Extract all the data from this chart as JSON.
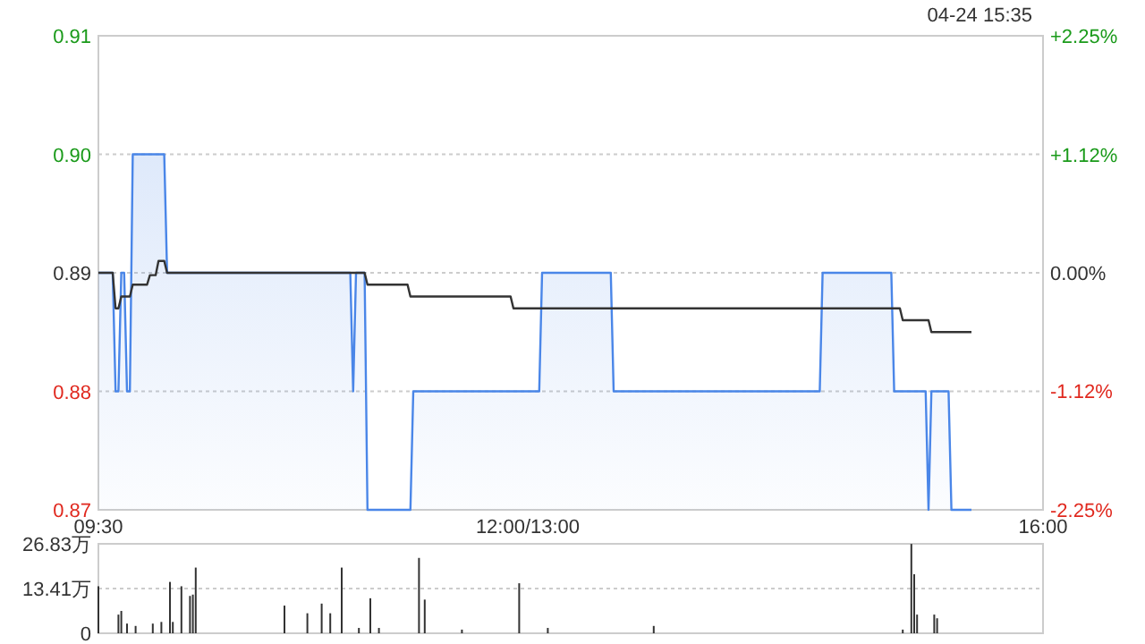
{
  "chart_data": [
    {
      "type": "area",
      "annotations": [
        "04-24 15:35"
      ],
      "categories": [
        "09:30",
        null,
        null,
        null,
        null,
        null,
        null,
        null,
        null,
        null,
        null,
        null,
        null,
        null,
        null,
        null,
        null,
        null,
        null,
        null,
        null,
        null,
        null,
        null,
        null,
        null,
        null,
        null,
        null,
        null,
        null,
        null,
        null,
        null,
        null,
        null,
        null,
        null,
        null,
        null,
        null,
        null,
        null,
        null,
        null,
        null,
        null,
        null,
        null,
        null,
        null,
        null,
        null,
        null,
        null,
        null,
        null,
        null,
        null,
        null,
        null,
        null,
        null,
        null,
        null,
        null,
        null,
        null,
        null,
        null,
        null,
        null,
        null,
        null,
        null,
        null,
        null,
        null,
        null,
        null,
        null,
        null,
        null,
        null,
        null,
        null,
        null,
        null,
        null,
        null,
        null,
        null,
        null,
        null,
        null,
        null,
        null,
        null,
        null,
        null,
        null,
        null,
        null,
        null,
        null,
        null,
        null,
        null,
        null,
        null,
        null,
        null,
        null,
        null,
        null,
        null,
        null,
        null,
        null,
        null,
        null,
        null,
        null,
        null,
        null,
        null,
        null,
        null,
        null,
        null,
        null,
        null,
        null,
        null,
        null,
        null,
        null,
        null,
        null,
        null,
        null,
        null,
        null,
        null,
        null,
        null,
        null,
        null,
        null,
        null,
        "12:00/13:00",
        null,
        null,
        null,
        null,
        null,
        null,
        null,
        null,
        null,
        null,
        null,
        null,
        null,
        null,
        null,
        null,
        null,
        null,
        null,
        null,
        null,
        null,
        null,
        null,
        null,
        null,
        null,
        null,
        null,
        null,
        null,
        null,
        null,
        null,
        null,
        null,
        null,
        null,
        null,
        null,
        null,
        null,
        null,
        null,
        null,
        null,
        null,
        null,
        null,
        null,
        null,
        null,
        null,
        null,
        null,
        null,
        null,
        null,
        null,
        null,
        null,
        null,
        null,
        null,
        null,
        null,
        null,
        null,
        null,
        null,
        null,
        null,
        null,
        null,
        null,
        null,
        null,
        null,
        null,
        null,
        null,
        null,
        null,
        null,
        null,
        null,
        null,
        null,
        null,
        null,
        null,
        null,
        null,
        null,
        null,
        null,
        null,
        null,
        null,
        null,
        null,
        null,
        null,
        null,
        null,
        null,
        null,
        null,
        null,
        null,
        null,
        null,
        null,
        null,
        null,
        null,
        null,
        null,
        null,
        null,
        null,
        null,
        null,
        null,
        null,
        null,
        null,
        null,
        null,
        null,
        null,
        null,
        null,
        null,
        null,
        null,
        null,
        null,
        null,
        null,
        null,
        null,
        null,
        null,
        null,
        null,
        null,
        null,
        null,
        null,
        null,
        null,
        null,
        null,
        null,
        null,
        null,
        null,
        null,
        null,
        null,
        null,
        null,
        null,
        null,
        null,
        null,
        null,
        null,
        null,
        null,
        null,
        null,
        null,
        null,
        null,
        null,
        null,
        null,
        "16:00"
      ],
      "ylim": [
        0.87,
        0.91
      ],
      "yticks": [
        {
          "value": 0.87,
          "label": "0.87"
        },
        {
          "value": 0.88,
          "label": "0.88"
        },
        {
          "value": 0.89,
          "label": "0.89"
        },
        {
          "value": 0.9,
          "label": "0.90"
        },
        {
          "value": 0.91,
          "label": "0.91"
        }
      ],
      "y2lim": [
        -2.25,
        2.25
      ],
      "y2ticks": [
        {
          "value": -2.25,
          "label": "-2.25%"
        },
        {
          "value": -1.12,
          "label": "-1.12%"
        },
        {
          "value": 0,
          "label": "0.00%"
        },
        {
          "value": 1.12,
          "label": "+1.12%"
        },
        {
          "value": 2.25,
          "label": "+2.25%"
        }
      ],
      "grid": "y",
      "series": [
        {
          "color": "#4a86e8",
          "values": [
            0.89,
            0.89,
            0.89,
            0.89,
            0.89,
            0.89,
            0.88,
            0.88,
            0.89,
            0.89,
            0.88,
            0.88,
            0.9,
            0.9,
            0.9,
            0.9,
            0.9,
            0.9,
            0.9,
            0.9,
            0.9,
            0.9,
            0.9,
            0.9,
            0.89,
            0.89,
            0.89,
            0.89,
            0.89,
            0.89,
            0.89,
            0.89,
            0.89,
            0.89,
            0.89,
            0.89,
            0.89,
            0.89,
            0.89,
            0.89,
            0.89,
            0.89,
            0.89,
            0.89,
            0.89,
            0.89,
            0.89,
            0.89,
            0.89,
            0.89,
            0.89,
            0.89,
            0.89,
            0.89,
            0.89,
            0.89,
            0.89,
            0.89,
            0.89,
            0.89,
            0.89,
            0.89,
            0.89,
            0.89,
            0.89,
            0.89,
            0.89,
            0.89,
            0.89,
            0.89,
            0.89,
            0.89,
            0.89,
            0.89,
            0.89,
            0.89,
            0.89,
            0.89,
            0.89,
            0.89,
            0.89,
            0.89,
            0.89,
            0.89,
            0.89,
            0.89,
            0.89,
            0.89,
            0.89,
            0.88,
            0.89,
            0.89,
            0.89,
            0.89,
            0.87,
            0.87,
            0.87,
            0.87,
            0.87,
            0.87,
            0.87,
            0.87,
            0.87,
            0.87,
            0.87,
            0.87,
            0.87,
            0.87,
            0.87,
            0.87,
            0.88,
            0.88,
            0.88,
            0.88,
            0.88,
            0.88,
            0.88,
            0.88,
            0.88,
            0.88,
            0.88,
            0.88,
            0.88,
            0.88,
            0.88,
            0.88,
            0.88,
            0.88,
            0.88,
            0.88,
            0.88,
            0.88,
            0.88,
            0.88,
            0.88,
            0.88,
            0.88,
            0.88,
            0.88,
            0.88,
            0.88,
            0.88,
            0.88,
            0.88,
            0.88,
            0.88,
            0.88,
            0.88,
            0.88,
            0.88,
            0.88,
            0.88,
            0.88,
            0.88,
            0.88,
            0.89,
            0.89,
            0.89,
            0.89,
            0.89,
            0.89,
            0.89,
            0.89,
            0.89,
            0.89,
            0.89,
            0.89,
            0.89,
            0.89,
            0.89,
            0.89,
            0.89,
            0.89,
            0.89,
            0.89,
            0.89,
            0.89,
            0.89,
            0.89,
            0.89,
            0.88,
            0.88,
            0.88,
            0.88,
            0.88,
            0.88,
            0.88,
            0.88,
            0.88,
            0.88,
            0.88,
            0.88,
            0.88,
            0.88,
            0.88,
            0.88,
            0.88,
            0.88,
            0.88,
            0.88,
            0.88,
            0.88,
            0.88,
            0.88,
            0.88,
            0.88,
            0.88,
            0.88,
            0.88,
            0.88,
            0.88,
            0.88,
            0.88,
            0.88,
            0.88,
            0.88,
            0.88,
            0.88,
            0.88,
            0.88,
            0.88,
            0.88,
            0.88,
            0.88,
            0.88,
            0.88,
            0.88,
            0.88,
            0.88,
            0.88,
            0.88,
            0.88,
            0.88,
            0.88,
            0.88,
            0.88,
            0.88,
            0.88,
            0.88,
            0.88,
            0.88,
            0.88,
            0.88,
            0.88,
            0.88,
            0.88,
            0.88,
            0.88,
            0.88,
            0.88,
            0.88,
            0.88,
            0.88,
            0.89,
            0.89,
            0.89,
            0.89,
            0.89,
            0.89,
            0.89,
            0.89,
            0.89,
            0.89,
            0.89,
            0.89,
            0.89,
            0.89,
            0.89,
            0.89,
            0.89,
            0.89,
            0.89,
            0.89,
            0.89,
            0.89,
            0.89,
            0.89,
            0.89,
            0.88,
            0.88,
            0.88,
            0.88,
            0.88,
            0.88,
            0.88,
            0.88,
            0.88,
            0.88,
            0.88,
            0.88,
            0.87,
            0.88,
            0.88,
            0.88,
            0.88,
            0.88,
            0.88,
            0.88,
            0.87,
            0.87,
            0.87,
            0.87,
            0.87,
            0.87,
            0.87,
            0.87,
            null,
            null,
            null,
            null,
            null,
            null,
            null,
            null,
            null,
            null,
            null,
            null,
            null,
            null,
            null,
            null,
            null,
            null,
            null,
            null,
            null,
            null,
            null,
            null,
            null
          ]
        },
        {
          "type": "line",
          "color": "#333333",
          "values": [
            0.89,
            0.89,
            0.89,
            0.89,
            0.89,
            0.89,
            0.887,
            0.887,
            0.888,
            0.888,
            0.888,
            0.888,
            0.889,
            0.889,
            0.889,
            0.889,
            0.889,
            0.889,
            0.8898,
            0.8898,
            0.8898,
            0.891,
            0.891,
            0.891,
            0.89,
            0.89,
            0.89,
            0.89,
            0.89,
            0.89,
            0.89,
            0.89,
            0.89,
            0.89,
            0.89,
            0.89,
            0.89,
            0.89,
            0.89,
            0.89,
            0.89,
            0.89,
            0.89,
            0.89,
            0.89,
            0.89,
            0.89,
            0.89,
            0.89,
            0.89,
            0.89,
            0.89,
            0.89,
            0.89,
            0.89,
            0.89,
            0.89,
            0.89,
            0.89,
            0.89,
            0.89,
            0.89,
            0.89,
            0.89,
            0.89,
            0.89,
            0.89,
            0.89,
            0.89,
            0.89,
            0.89,
            0.89,
            0.89,
            0.89,
            0.89,
            0.89,
            0.89,
            0.89,
            0.89,
            0.89,
            0.89,
            0.89,
            0.89,
            0.89,
            0.89,
            0.89,
            0.89,
            0.89,
            0.89,
            0.89,
            0.89,
            0.89,
            0.89,
            0.89,
            0.889,
            0.889,
            0.889,
            0.889,
            0.889,
            0.889,
            0.889,
            0.889,
            0.889,
            0.889,
            0.889,
            0.889,
            0.889,
            0.889,
            0.889,
            0.888,
            0.888,
            0.888,
            0.888,
            0.888,
            0.888,
            0.888,
            0.888,
            0.888,
            0.888,
            0.888,
            0.888,
            0.888,
            0.888,
            0.888,
            0.888,
            0.888,
            0.888,
            0.888,
            0.888,
            0.888,
            0.888,
            0.888,
            0.888,
            0.888,
            0.888,
            0.888,
            0.888,
            0.888,
            0.888,
            0.888,
            0.888,
            0.888,
            0.888,
            0.888,
            0.888,
            0.887,
            0.887,
            0.887,
            0.887,
            0.887,
            0.887,
            0.887,
            0.887,
            0.887,
            0.887,
            0.887,
            0.887,
            0.887,
            0.887,
            0.887,
            0.887,
            0.887,
            0.887,
            0.887,
            0.887,
            0.887,
            0.887,
            0.887,
            0.887,
            0.887,
            0.887,
            0.887,
            0.887,
            0.887,
            0.887,
            0.887,
            0.887,
            0.887,
            0.887,
            0.887,
            0.887,
            0.887,
            0.887,
            0.887,
            0.887,
            0.887,
            0.887,
            0.887,
            0.887,
            0.887,
            0.887,
            0.887,
            0.887,
            0.887,
            0.887,
            0.887,
            0.887,
            0.887,
            0.887,
            0.887,
            0.887,
            0.887,
            0.887,
            0.887,
            0.887,
            0.887,
            0.887,
            0.887,
            0.887,
            0.887,
            0.887,
            0.887,
            0.887,
            0.887,
            0.887,
            0.887,
            0.887,
            0.887,
            0.887,
            0.887,
            0.887,
            0.887,
            0.887,
            0.887,
            0.887,
            0.887,
            0.887,
            0.887,
            0.887,
            0.887,
            0.887,
            0.887,
            0.887,
            0.887,
            0.887,
            0.887,
            0.887,
            0.887,
            0.887,
            0.887,
            0.887,
            0.887,
            0.887,
            0.887,
            0.887,
            0.887,
            0.887,
            0.887,
            0.887,
            0.887,
            0.887,
            0.887,
            0.887,
            0.887,
            0.887,
            0.887,
            0.887,
            0.887,
            0.887,
            0.887,
            0.887,
            0.887,
            0.887,
            0.887,
            0.887,
            0.887,
            0.887,
            0.887,
            0.887,
            0.887,
            0.887,
            0.887,
            0.887,
            0.887,
            0.887,
            0.887,
            0.887,
            0.887,
            0.887,
            0.887,
            0.887,
            0.886,
            0.886,
            0.886,
            0.886,
            0.886,
            0.886,
            0.886,
            0.886,
            0.886,
            0.886,
            0.885,
            0.885,
            0.885,
            0.885,
            0.885,
            0.885,
            0.885,
            0.885,
            0.885,
            0.885,
            0.885,
            0.885,
            0.885,
            0.885,
            0.885,
            null,
            null,
            null,
            null,
            null,
            null,
            null,
            null,
            null,
            null,
            null,
            null,
            null,
            null,
            null,
            null,
            null,
            null,
            null,
            null,
            null,
            null,
            null,
            null,
            null
          ]
        }
      ]
    },
    {
      "type": "bar",
      "tick_labels": "y",
      "categories": [
        null,
        null,
        null,
        null,
        null,
        null,
        null,
        null,
        null,
        null,
        null,
        null,
        null,
        null,
        null,
        null,
        null,
        null,
        null,
        null,
        null,
        null,
        null,
        null,
        null,
        null,
        null,
        null,
        null,
        null,
        null,
        null,
        null,
        null,
        null,
        null,
        null,
        null,
        null,
        null,
        null,
        null,
        null,
        null,
        null,
        null,
        null,
        null,
        null,
        null,
        null,
        null,
        null,
        null,
        null,
        null,
        null,
        null,
        null,
        null,
        null,
        null,
        null,
        null,
        null,
        null,
        null,
        null,
        null,
        null,
        null,
        null,
        null,
        null,
        null,
        null,
        null,
        null,
        null,
        null,
        null,
        null,
        null,
        null,
        null,
        null,
        null,
        null,
        null,
        null,
        null,
        null,
        null,
        null,
        null,
        null,
        null,
        null,
        null,
        null,
        null,
        null,
        null,
        null,
        null,
        null,
        null,
        null,
        null,
        null,
        null,
        null,
        null,
        null,
        null,
        null,
        null,
        null,
        null,
        null,
        null,
        null,
        null,
        null,
        null,
        null,
        null,
        null,
        null,
        null,
        null,
        null,
        null,
        null,
        null,
        null,
        null,
        null,
        null,
        null,
        null,
        null,
        null,
        null,
        null,
        null,
        null,
        null,
        null,
        null,
        null,
        null,
        null,
        null,
        null,
        null,
        null,
        null,
        null,
        null,
        null,
        null,
        null,
        null,
        null,
        null,
        null,
        null,
        null,
        null,
        null,
        null,
        null,
        null,
        null,
        null,
        null,
        null,
        null,
        null,
        null,
        null,
        null,
        null,
        null,
        null,
        null,
        null,
        null,
        null,
        null,
        null,
        null,
        null,
        null,
        null,
        null,
        null,
        null,
        null,
        null,
        null,
        null,
        null,
        null,
        null,
        null,
        null,
        null,
        null,
        null,
        null,
        null,
        null,
        null,
        null,
        null,
        null,
        null,
        null,
        null,
        null,
        null,
        null,
        null,
        null,
        null,
        null,
        null,
        null,
        null,
        null,
        null,
        null,
        null,
        null,
        null,
        null,
        null,
        null,
        null,
        null,
        null,
        null,
        null,
        null,
        null,
        null,
        null,
        null,
        null,
        null,
        null,
        null,
        null,
        null,
        null,
        null,
        null,
        null,
        null,
        null,
        null,
        null,
        null,
        null,
        null,
        null,
        null,
        null,
        null,
        null,
        null,
        null,
        null,
        null,
        null,
        null,
        null,
        null,
        null,
        null,
        null,
        null,
        null,
        null,
        null,
        null,
        null,
        null,
        null,
        null,
        null,
        null,
        null,
        null,
        null,
        null,
        null,
        null,
        null,
        null,
        null,
        null,
        null,
        null,
        null,
        null,
        null,
        null,
        null,
        null,
        null,
        null,
        null,
        null,
        null,
        null,
        null,
        null,
        null,
        null,
        null,
        null,
        null,
        null,
        null,
        null,
        null,
        null,
        null
      ],
      "ylim": [
        0,
        26.83
      ],
      "yticks": [
        {
          "value": 0,
          "label": "0"
        },
        {
          "value": 13.41,
          "label": "13.41万"
        },
        {
          "value": 26.83,
          "label": "26.83万"
        }
      ],
      "grid": "y",
      "values": [
        14.1,
        null,
        null,
        null,
        null,
        null,
        null,
        5.6,
        6.7,
        null,
        2.9,
        null,
        null,
        2.2,
        null,
        null,
        null,
        null,
        null,
        2.9,
        null,
        null,
        3.4,
        null,
        null,
        15.4,
        3.4,
        null,
        null,
        14.1,
        null,
        null,
        11.2,
        11.6,
        19.7,
        null,
        null,
        null,
        null,
        null,
        null,
        null,
        null,
        null,
        null,
        null,
        null,
        null,
        null,
        null,
        null,
        null,
        null,
        null,
        null,
        null,
        null,
        null,
        null,
        null,
        null,
        null,
        null,
        null,
        null,
        8.3,
        null,
        null,
        null,
        null,
        null,
        null,
        null,
        6.0,
        null,
        null,
        null,
        null,
        8.9,
        null,
        null,
        6.0,
        null,
        null,
        null,
        19.7,
        null,
        null,
        null,
        null,
        null,
        1.6,
        null,
        null,
        null,
        10.5,
        null,
        null,
        1.6,
        null,
        null,
        null,
        null,
        null,
        null,
        null,
        null,
        null,
        null,
        null,
        null,
        null,
        22.6,
        null,
        10.1,
        null,
        null,
        null,
        null,
        null,
        null,
        null,
        null,
        null,
        null,
        null,
        null,
        1.1,
        null,
        null,
        null,
        null,
        null,
        null,
        null,
        null,
        null,
        null,
        null,
        null,
        null,
        null,
        null,
        null,
        null,
        null,
        null,
        15.0,
        null,
        null,
        null,
        null,
        null,
        null,
        null,
        null,
        null,
        1.6,
        null,
        null,
        null,
        null,
        null,
        null,
        null,
        null,
        null,
        null,
        null,
        null,
        null,
        null,
        null,
        null,
        null,
        null,
        null,
        null,
        null,
        null,
        null,
        null,
        null,
        null,
        null,
        null,
        null,
        null,
        null,
        null,
        null,
        null,
        null,
        null,
        2.2,
        null,
        null,
        null,
        null,
        null,
        null,
        null,
        null,
        null,
        null,
        null,
        null,
        null,
        null,
        null,
        null,
        null,
        null,
        null,
        null,
        null,
        null,
        null,
        null,
        null,
        null,
        null,
        null,
        null,
        null,
        null,
        null,
        null,
        null,
        null,
        null,
        null,
        null,
        null,
        null,
        null,
        null,
        null,
        null,
        null,
        null,
        null,
        null,
        null,
        null,
        null,
        null,
        null,
        null,
        null,
        null,
        null,
        null,
        null,
        null,
        null,
        null,
        null,
        null,
        null,
        null,
        null,
        null,
        null,
        null,
        null,
        null,
        null,
        null,
        null,
        null,
        null,
        null,
        null,
        null,
        null,
        null,
        null,
        null,
        null,
        null,
        1.1,
        null,
        null,
        26.8,
        17.7,
        5.6,
        null,
        null,
        null,
        null,
        null,
        5.6,
        4.5,
        null,
        null,
        null,
        null,
        null,
        null,
        null,
        null,
        null,
        null,
        null,
        null,
        null,
        null,
        null,
        null,
        null,
        null,
        null,
        null,
        null,
        null,
        null,
        null,
        null,
        null,
        null,
        null,
        null,
        null,
        null,
        null,
        null,
        null,
        null,
        null,
        null
      ],
      "color": "#333333"
    }
  ]
}
